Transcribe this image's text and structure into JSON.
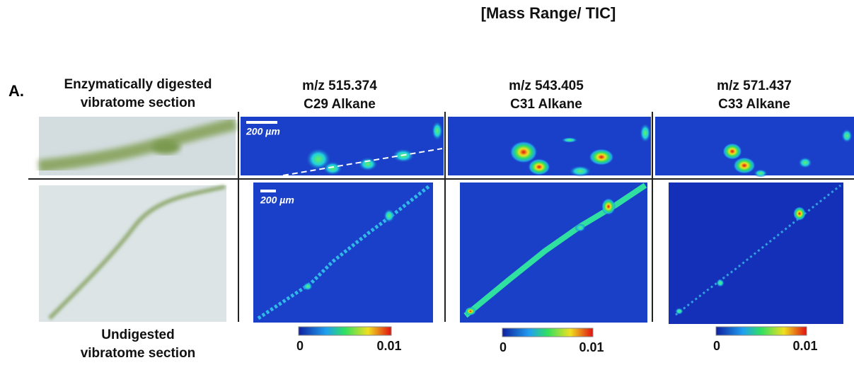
{
  "title": "[Mass Range/ TIC]",
  "panel_label": "A.",
  "rows": [
    {
      "label_lines": [
        "Enzymatically digested",
        "vibratome section"
      ]
    },
    {
      "label_lines": [
        "Undigested",
        "vibratome section"
      ]
    }
  ],
  "columns": [
    {
      "mz": "m/z 515.374",
      "compound": "C29 Alkane"
    },
    {
      "mz": "m/z 543.405",
      "compound": "C31 Alkane"
    },
    {
      "mz": "m/z 571.437",
      "compound": "C33 Alkane"
    }
  ],
  "scale_bars": [
    "200 µm",
    "200 µm"
  ],
  "colorbars": [
    {
      "min": 0,
      "max": 0.01
    },
    {
      "min": 0,
      "max": 0.01
    },
    {
      "min": 0,
      "max": 0.01
    }
  ]
}
